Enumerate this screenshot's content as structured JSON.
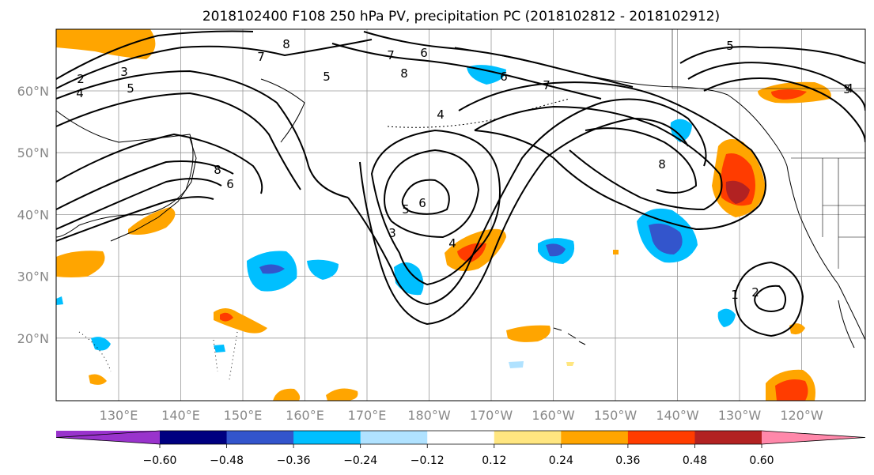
{
  "title": "2018102400 F108 250 hPa PV, precipitation PC (2018102812 - 2018102912)",
  "lat_labels": [
    "60°N",
    "50°N",
    "40°N",
    "30°N",
    "20°N"
  ],
  "lon_labels": [
    "130°E",
    "140°E",
    "150°E",
    "160°E",
    "170°E",
    "180°W",
    "170°W",
    "160°W",
    "150°W",
    "140°W",
    "130°W",
    "120°W"
  ],
  "colorbar": {
    "ticks": [
      "−0.60",
      "−0.48",
      "−0.36",
      "−0.24",
      "−0.12",
      "0.12",
      "0.24",
      "0.36",
      "0.48",
      "0.60"
    ],
    "colors": [
      "#9933cc",
      "#000080",
      "#3355cc",
      "#00bfff",
      "#b0e2ff",
      "#ffffff",
      "#ffe680",
      "#ffa500",
      "#ff3c00",
      "#b22222",
      "#ff88aa"
    ]
  },
  "contour_labels": [
    "2",
    "3",
    "4",
    "5",
    "7",
    "8",
    "8",
    "6",
    "7",
    "8",
    "6",
    "6",
    "7",
    "5",
    "4",
    "3",
    "5",
    "6",
    "4",
    "8",
    "5",
    "4",
    "5",
    "1",
    "2"
  ],
  "colors": {
    "orange": "#ffa500",
    "light_orange": "#ffe680",
    "red": "#ff3c00",
    "dark_red": "#b22222",
    "blue": "#3355cc",
    "sky": "#00bfff",
    "light_blue": "#b0e2ff"
  }
}
